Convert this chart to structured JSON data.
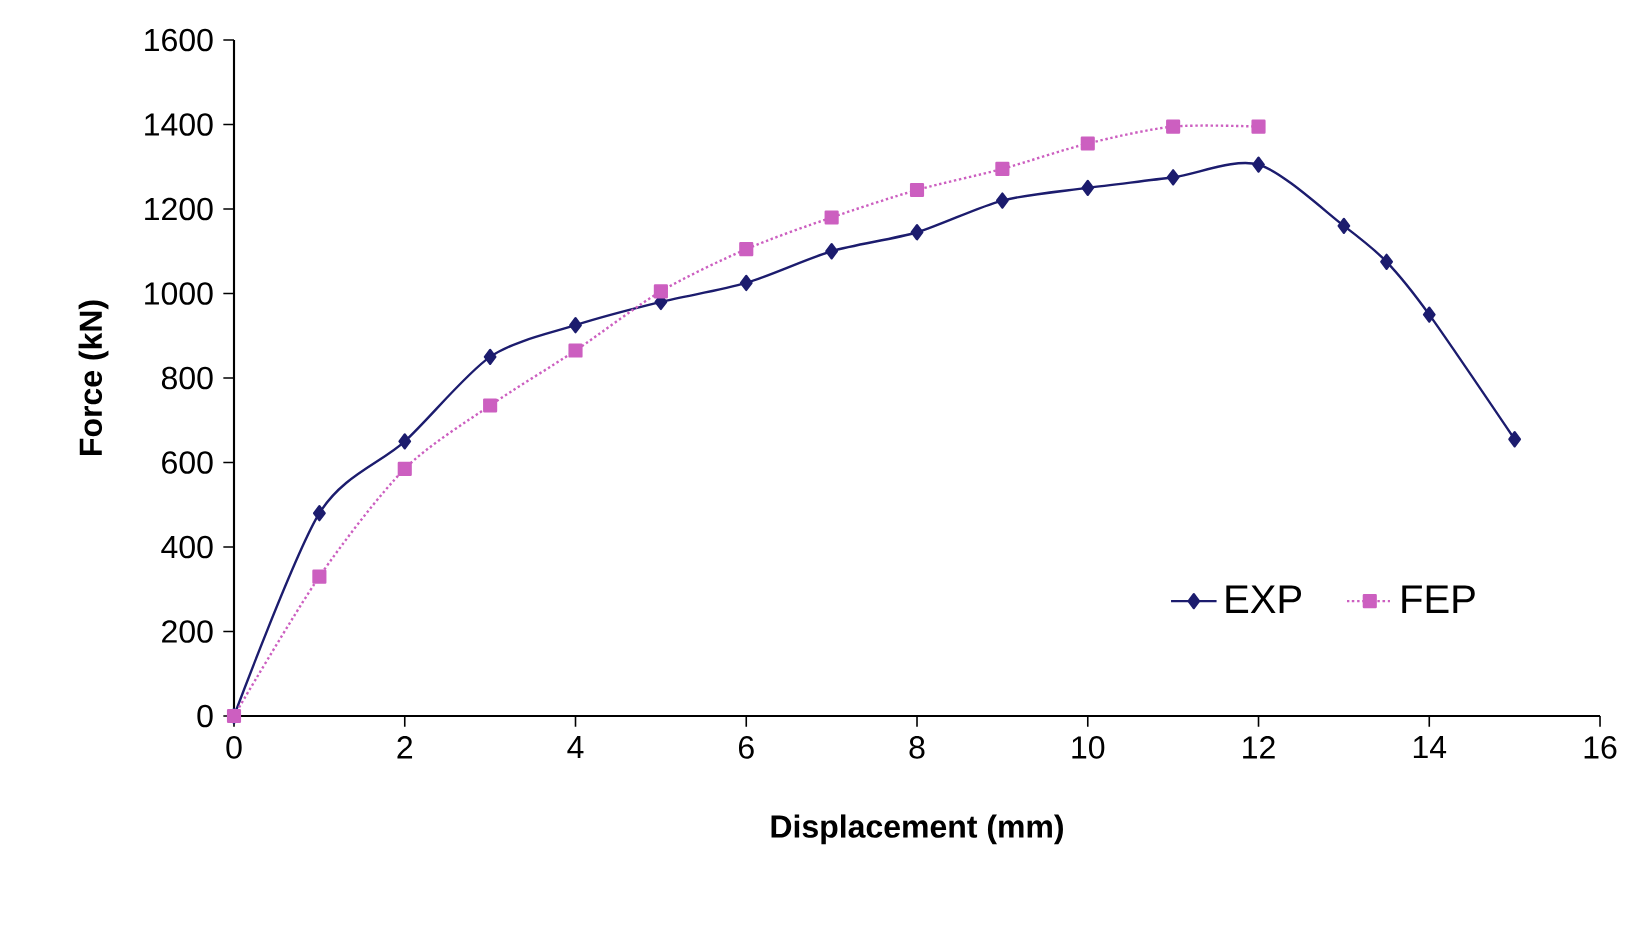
{
  "chart_data": {
    "type": "line",
    "xlabel": "Displacement  (mm)",
    "ylabel": "Force  (kN)",
    "xlim": [
      0,
      16
    ],
    "xticks": [
      0,
      2,
      4,
      6,
      8,
      10,
      12,
      14,
      16
    ],
    "ylim": [
      0,
      1600
    ],
    "yticks": [
      0,
      200,
      400,
      600,
      800,
      1000,
      1200,
      1400,
      1600
    ],
    "legend": "bottom right",
    "series": [
      {
        "name": "EXP",
        "color": "#1c1c6e",
        "marker": "diamond",
        "line_style": "solid",
        "x": [
          0,
          1,
          2,
          3,
          4,
          5,
          6,
          7,
          8,
          9,
          10,
          11,
          12,
          13,
          13.5,
          14,
          15
        ],
        "values": [
          0,
          480,
          650,
          850,
          925,
          980,
          1025,
          1100,
          1145,
          1220,
          1250,
          1275,
          1305,
          1160,
          1075,
          950,
          655
        ]
      },
      {
        "name": "FEP",
        "color": "#cc5fc0",
        "marker": "square",
        "line_style": "dotted",
        "x": [
          0,
          1,
          2,
          3,
          4,
          5,
          6,
          7,
          8,
          9,
          10,
          11,
          12
        ],
        "values": [
          0,
          330,
          585,
          735,
          865,
          1005,
          1105,
          1180,
          1245,
          1295,
          1355,
          1395,
          1395
        ]
      }
    ]
  }
}
